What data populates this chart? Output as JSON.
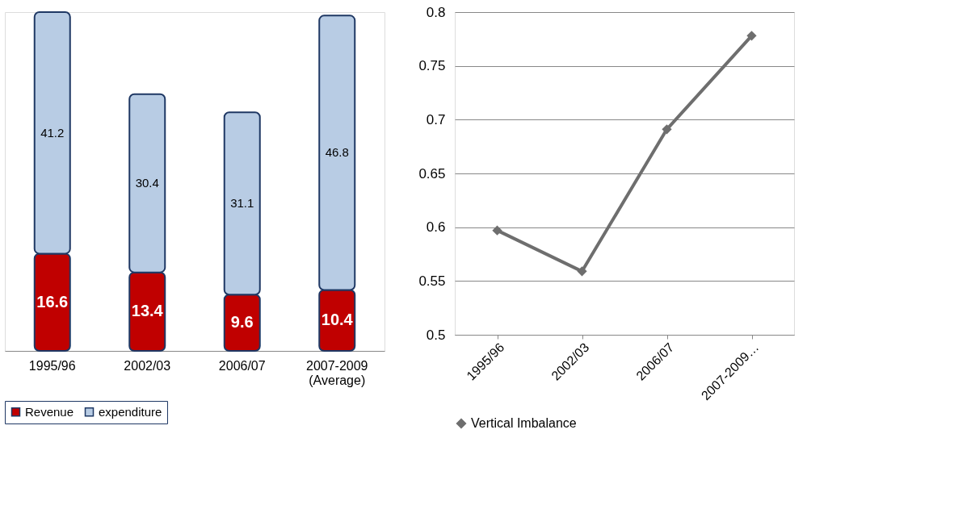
{
  "chart_data": [
    {
      "type": "bar",
      "stacked": true,
      "data_labels": true,
      "legend": "bottom",
      "categories": [
        "1995/96",
        "2002/03",
        "2006/07",
        "2007-2009 (Average)"
      ],
      "series": [
        {
          "name": "Revenue",
          "color": "#c00000",
          "values": [
            16.6,
            13.4,
            9.6,
            10.4
          ]
        },
        {
          "name": "expenditure",
          "color": "#b8cce4",
          "values": [
            41.2,
            30.4,
            31.1,
            46.8
          ]
        }
      ]
    },
    {
      "type": "line",
      "legend": "bottom",
      "grid": "y",
      "marker": "diamond",
      "line_style": "solid",
      "categories": [
        "1995/96",
        "2002/03",
        "2006/07",
        "2007-2009…"
      ],
      "ylim": [
        0.5,
        0.8
      ],
      "yticks": [
        0.5,
        0.55,
        0.6,
        0.65,
        0.7,
        0.75,
        0.8
      ],
      "series": [
        {
          "name": "Vertical Imbalance",
          "color": "#6e6e6e",
          "values": [
            0.597,
            0.559,
            0.691,
            0.778
          ]
        }
      ]
    }
  ]
}
